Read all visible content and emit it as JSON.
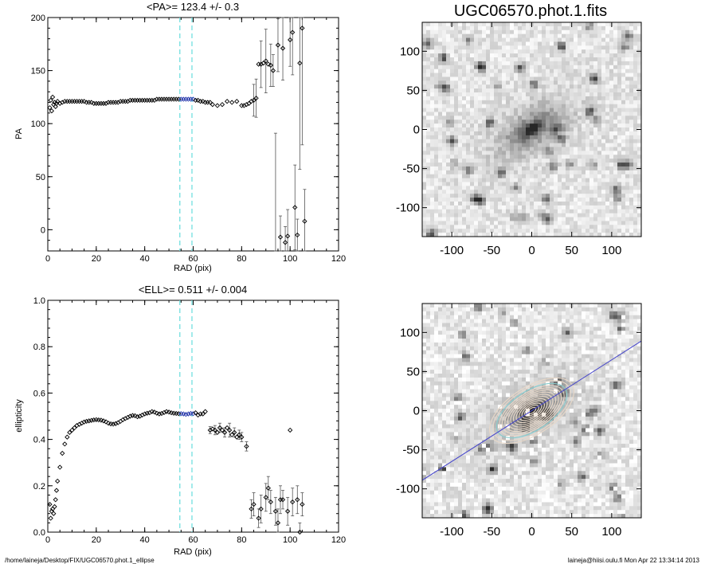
{
  "footer": {
    "path": "/home/laineja/Desktop/FIX/UGC06570.phot.1_ellipse",
    "stamp": "laineja@hiisi.oulu.fi  Mon Apr 22 13:34:14 2013"
  },
  "colors": {
    "marker": "#000000",
    "highlight": "#2233aa",
    "window_line": "#66dddd",
    "major_axis": "#4444cc",
    "contour": "#e8d8c8",
    "contour_accent": "#88cccc"
  },
  "chart_data": [
    {
      "type": "scatter",
      "title": "<PA>= 123.4 +/-   0.3",
      "xlabel": "RAD (pix)",
      "ylabel": "PA",
      "xlim": [
        0,
        120
      ],
      "ylim": [
        -20,
        200
      ],
      "xticks": [
        "0",
        "20",
        "40",
        "60",
        "80",
        "100",
        "120"
      ],
      "xtick_values": [
        0,
        20,
        40,
        60,
        80,
        100,
        120
      ],
      "yticks": [
        "0",
        "50",
        "100",
        "150",
        "200"
      ],
      "ytick_values": [
        0,
        50,
        100,
        150,
        200
      ],
      "window_lines": [
        54.5,
        59.5
      ],
      "dense_profile": [
        [
          0.8,
          115
        ],
        [
          1.2,
          122
        ],
        [
          1.6,
          112
        ],
        [
          2,
          125
        ],
        [
          2.4,
          118
        ],
        [
          2.8,
          120
        ],
        [
          3.2,
          116
        ],
        [
          3.6,
          119
        ],
        [
          4,
          121
        ],
        [
          5,
          119
        ],
        [
          6,
          120
        ],
        [
          7,
          121
        ],
        [
          8,
          121
        ],
        [
          9,
          121
        ],
        [
          10,
          121
        ],
        [
          11,
          121
        ],
        [
          12,
          121
        ],
        [
          13,
          121
        ],
        [
          14,
          121
        ],
        [
          15,
          121
        ],
        [
          16,
          120
        ],
        [
          17,
          120
        ],
        [
          18,
          120
        ],
        [
          19,
          119
        ],
        [
          20,
          119
        ],
        [
          21,
          119
        ],
        [
          22,
          119
        ],
        [
          23,
          119
        ],
        [
          24,
          119
        ],
        [
          25,
          120
        ],
        [
          26,
          120
        ],
        [
          27,
          120
        ],
        [
          28,
          120
        ],
        [
          29,
          120
        ],
        [
          30,
          121
        ],
        [
          31,
          121
        ],
        [
          32,
          121
        ],
        [
          33,
          121
        ],
        [
          34,
          122
        ],
        [
          35,
          122
        ],
        [
          36,
          122
        ],
        [
          37,
          122
        ],
        [
          38,
          122
        ],
        [
          39,
          122
        ],
        [
          40,
          122
        ],
        [
          41,
          122
        ],
        [
          42,
          122
        ],
        [
          43,
          122
        ],
        [
          44,
          122
        ],
        [
          45,
          123
        ],
        [
          46,
          123
        ],
        [
          47,
          123
        ],
        [
          48,
          123
        ],
        [
          49,
          123
        ],
        [
          50,
          123
        ],
        [
          51,
          123
        ],
        [
          52,
          123
        ],
        [
          53,
          123
        ],
        [
          54,
          123
        ]
      ],
      "highlight": [
        [
          55,
          123
        ],
        [
          56,
          123
        ],
        [
          57,
          123
        ],
        [
          58,
          123
        ],
        [
          59,
          123
        ],
        [
          60,
          123
        ]
      ],
      "points": [
        [
          61,
          122
        ],
        [
          62,
          122
        ],
        [
          63,
          121
        ],
        [
          64,
          121
        ],
        [
          65,
          120
        ],
        [
          66,
          120
        ],
        [
          67,
          120
        ],
        [
          68,
          118
        ],
        [
          70,
          117
        ],
        [
          72,
          118
        ],
        [
          74,
          121
        ],
        [
          76,
          120
        ],
        [
          78,
          121
        ],
        [
          80,
          117
        ],
        [
          81,
          117
        ],
        [
          82,
          118
        ],
        [
          83,
          119
        ],
        [
          84,
          121
        ],
        [
          85,
          122
        ],
        [
          86,
          124
        ],
        [
          87,
          156
        ],
        [
          88,
          156
        ],
        [
          89,
          157
        ],
        [
          90,
          159
        ],
        [
          91,
          156
        ],
        [
          92,
          155
        ],
        [
          93,
          150
        ],
        [
          94,
          -24
        ],
        [
          95,
          174
        ],
        [
          96,
          -7
        ],
        [
          97,
          171
        ],
        [
          98,
          -12
        ],
        [
          99,
          -6
        ],
        [
          100,
          179
        ],
        [
          101,
          186
        ],
        [
          102,
          21
        ],
        [
          103,
          -5
        ],
        [
          104,
          157
        ],
        [
          105,
          190
        ],
        [
          106,
          8
        ]
      ],
      "error_bars": [
        [
          85,
          122,
          15
        ],
        [
          86,
          124,
          18
        ],
        [
          88,
          156,
          22
        ],
        [
          90,
          159,
          30
        ],
        [
          92,
          155,
          20
        ],
        [
          93,
          150,
          15
        ],
        [
          94,
          -24,
          115
        ],
        [
          95,
          174,
          25
        ],
        [
          96,
          -7,
          20
        ],
        [
          97,
          171,
          30
        ],
        [
          98,
          -12,
          15
        ],
        [
          99,
          -6,
          25
        ],
        [
          100,
          179,
          25
        ],
        [
          101,
          186,
          40
        ],
        [
          102,
          21,
          40
        ],
        [
          103,
          -5,
          15
        ],
        [
          104,
          157,
          100
        ],
        [
          105,
          190,
          110
        ],
        [
          106,
          8,
          30
        ]
      ]
    },
    {
      "type": "scatter",
      "title": "<ELL>= 0.511 +/-  0.004",
      "xlabel": "RAD (pix)",
      "ylabel": "ellipticity",
      "xlim": [
        0,
        120
      ],
      "ylim": [
        0,
        1
      ],
      "xticks": [
        "0",
        "20",
        "40",
        "60",
        "80",
        "100",
        "120"
      ],
      "xtick_values": [
        0,
        20,
        40,
        60,
        80,
        100,
        120
      ],
      "yticks": [
        "0.0",
        "0.2",
        "0.4",
        "0.6",
        "0.8",
        "1.0"
      ],
      "ytick_values": [
        0,
        0.2,
        0.4,
        0.6,
        0.8,
        1.0
      ],
      "window_lines": [
        54.5,
        59.5
      ],
      "dense_profile": [
        [
          0.8,
          0.12
        ],
        [
          1.2,
          0.06
        ],
        [
          1.6,
          0.09
        ],
        [
          2,
          0.1
        ],
        [
          2.4,
          0.08
        ],
        [
          2.8,
          0.11
        ],
        [
          3.2,
          0.14
        ],
        [
          3.6,
          0.18
        ],
        [
          4,
          0.22
        ],
        [
          5,
          0.28
        ],
        [
          6,
          0.34
        ],
        [
          7,
          0.38
        ],
        [
          8,
          0.41
        ],
        [
          9,
          0.43
        ],
        [
          10,
          0.44
        ],
        [
          11,
          0.45
        ],
        [
          12,
          0.46
        ],
        [
          13,
          0.465
        ],
        [
          14,
          0.47
        ],
        [
          15,
          0.475
        ],
        [
          16,
          0.478
        ],
        [
          17,
          0.48
        ],
        [
          18,
          0.482
        ],
        [
          19,
          0.484
        ],
        [
          20,
          0.485
        ],
        [
          21,
          0.484
        ],
        [
          22,
          0.483
        ],
        [
          23,
          0.48
        ],
        [
          24,
          0.476
        ],
        [
          25,
          0.47
        ],
        [
          26,
          0.467
        ],
        [
          27,
          0.466
        ],
        [
          28,
          0.468
        ],
        [
          29,
          0.472
        ],
        [
          30,
          0.478
        ],
        [
          31,
          0.485
        ],
        [
          32,
          0.49
        ],
        [
          33,
          0.495
        ],
        [
          34,
          0.5
        ],
        [
          35,
          0.503
        ],
        [
          36,
          0.502
        ],
        [
          37,
          0.498
        ],
        [
          38,
          0.5
        ],
        [
          39,
          0.505
        ],
        [
          40,
          0.51
        ],
        [
          41,
          0.513
        ],
        [
          42,
          0.515
        ],
        [
          43,
          0.52
        ],
        [
          44,
          0.518
        ],
        [
          45,
          0.513
        ],
        [
          46,
          0.51
        ],
        [
          47,
          0.512
        ],
        [
          48,
          0.516
        ],
        [
          49,
          0.52
        ],
        [
          50,
          0.518
        ],
        [
          51,
          0.515
        ],
        [
          52,
          0.513
        ],
        [
          53,
          0.512
        ],
        [
          54,
          0.511
        ]
      ],
      "highlight": [
        [
          55,
          0.511
        ],
        [
          56,
          0.51
        ],
        [
          57,
          0.508
        ],
        [
          58,
          0.51
        ],
        [
          59,
          0.512
        ],
        [
          60,
          0.511
        ]
      ],
      "points": [
        [
          61,
          0.515
        ],
        [
          62,
          0.505
        ],
        [
          63,
          0.51
        ],
        [
          64,
          0.51
        ],
        [
          65,
          0.52
        ],
        [
          67,
          0.44
        ],
        [
          68,
          0.445
        ],
        [
          69,
          0.44
        ],
        [
          70,
          0.43
        ],
        [
          71,
          0.45
        ],
        [
          72,
          0.44
        ],
        [
          73,
          0.43
        ],
        [
          74,
          0.45
        ],
        [
          75,
          0.44
        ],
        [
          76,
          0.42
        ],
        [
          77,
          0.43
        ],
        [
          78,
          0.41
        ],
        [
          79,
          0.42
        ],
        [
          80,
          0.41
        ],
        [
          82,
          0.37
        ],
        [
          84,
          0.1
        ],
        [
          85,
          0.12
        ],
        [
          87,
          0.06
        ],
        [
          88,
          0.1
        ],
        [
          90,
          0.15
        ],
        [
          91,
          0.19
        ],
        [
          92,
          0.13
        ],
        [
          94,
          0.09
        ],
        [
          95,
          0.04
        ],
        [
          96,
          0.14
        ],
        [
          97,
          0.14
        ],
        [
          99,
          0.09
        ],
        [
          100,
          0.44
        ],
        [
          101,
          0.13
        ],
        [
          103,
          0.14
        ],
        [
          104,
          0.0
        ],
        [
          105,
          0.12
        ]
      ],
      "error_bars": [
        [
          67,
          0.44,
          0.015
        ],
        [
          69,
          0.44,
          0.02
        ],
        [
          71,
          0.45,
          0.02
        ],
        [
          73,
          0.43,
          0.02
        ],
        [
          75,
          0.44,
          0.03
        ],
        [
          77,
          0.43,
          0.02
        ],
        [
          79,
          0.42,
          0.02
        ],
        [
          80,
          0.41,
          0.02
        ],
        [
          82,
          0.37,
          0.02
        ],
        [
          84,
          0.1,
          0.04
        ],
        [
          85,
          0.12,
          0.05
        ],
        [
          87,
          0.06,
          0.04
        ],
        [
          88,
          0.1,
          0.06
        ],
        [
          90,
          0.15,
          0.06
        ],
        [
          91,
          0.19,
          0.05
        ],
        [
          92,
          0.13,
          0.05
        ],
        [
          94,
          0.09,
          0.06
        ],
        [
          95,
          0.04,
          0.06
        ],
        [
          96,
          0.14,
          0.06
        ],
        [
          97,
          0.14,
          0.04
        ],
        [
          99,
          0.09,
          0.06
        ],
        [
          101,
          0.13,
          0.06
        ],
        [
          103,
          0.14,
          0.06
        ],
        [
          104,
          0.0,
          0.04
        ],
        [
          105,
          0.12,
          0.05
        ]
      ]
    },
    {
      "type": "heatmap",
      "title": "UGC06570.phot.1.fits",
      "xlim": [
        -137,
        137
      ],
      "ylim": [
        -137,
        137
      ],
      "xticks": [
        "-100",
        "-50",
        "0",
        "50",
        "100"
      ],
      "xtick_values": [
        -100,
        -50,
        0,
        50,
        100
      ],
      "yticks": [
        "100",
        "50",
        "0",
        "-50",
        "-100"
      ],
      "ytick_values": [
        100,
        50,
        0,
        -50,
        -100
      ],
      "galaxy_pa_deg": 33,
      "galaxy_axis_ratio": 0.49
    },
    {
      "type": "heatmap",
      "title": "",
      "xlim": [
        -137,
        137
      ],
      "ylim": [
        -137,
        137
      ],
      "xticks": [
        "-100",
        "-50",
        "0",
        "50",
        "100"
      ],
      "xtick_values": [
        -100,
        -50,
        0,
        50,
        100
      ],
      "yticks": [
        "100",
        "50",
        "0",
        "-50",
        "-100"
      ],
      "ytick_values": [
        100,
        50,
        0,
        -50,
        -100
      ],
      "major_axis_deg": 33,
      "contour_axis_ratio": 0.49,
      "contour_semimajor": [
        6,
        10,
        14,
        18,
        22,
        26,
        30,
        34,
        38,
        42,
        46,
        50,
        55,
        60
      ]
    }
  ]
}
